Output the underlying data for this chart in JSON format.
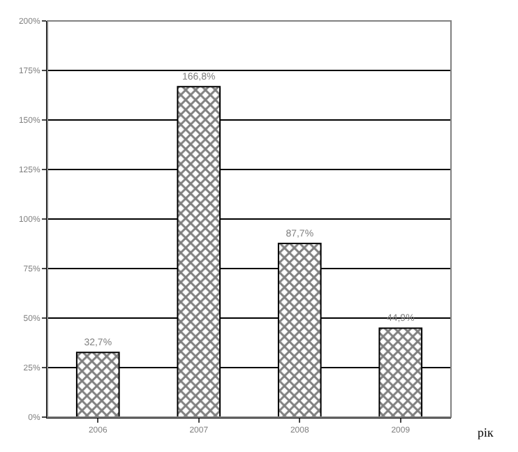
{
  "chart_data": {
    "type": "bar",
    "xlabel": "рік",
    "categories": [
      "2006",
      "2007",
      "2008",
      "2009"
    ],
    "values": [
      32.7,
      166.8,
      87.7,
      44.9
    ],
    "value_labels": [
      "32,7%",
      "166,8%",
      "87,7%",
      "44,9%"
    ],
    "color": "#000000",
    "ylim": [
      0,
      200
    ],
    "yticks": [
      {
        "value": 0,
        "label": "0%"
      },
      {
        "value": 25,
        "label": "25%"
      },
      {
        "value": 50,
        "label": "50%"
      },
      {
        "value": 75,
        "label": "75%"
      },
      {
        "value": 100,
        "label": "100%"
      },
      {
        "value": 125,
        "label": "125%"
      },
      {
        "value": 150,
        "label": "150%"
      },
      {
        "value": 175,
        "label": "175%"
      },
      {
        "value": 200,
        "label": "200%"
      }
    ],
    "grid": "y",
    "legend": false
  }
}
